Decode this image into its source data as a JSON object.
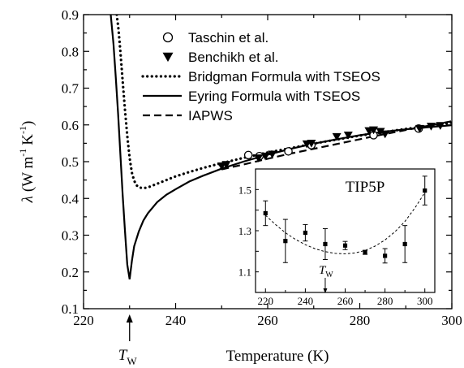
{
  "chart_data": [
    {
      "type": "line",
      "xlabel": "Temperature (K)",
      "ylabel_parts": [
        "λ",
        "(W m",
        "-1",
        "K",
        "-1",
        ")"
      ],
      "xlim": [
        220,
        300
      ],
      "ylim": [
        0.1,
        0.9
      ],
      "x_ticks": [
        220,
        240,
        260,
        280,
        300
      ],
      "y_ticks": [
        0.1,
        0.2,
        0.3,
        0.4,
        0.5,
        0.6,
        0.7,
        0.8,
        0.9
      ],
      "annotation": {
        "label": "T",
        "sub": "W",
        "x": 230
      },
      "legend_placement": "top-right",
      "series": [
        {
          "name": "Taschin et al.",
          "kind": "scatter",
          "marker": "open-circle",
          "x": [
            255.8,
            258.2,
            264.5,
            269.5,
            283,
            292.8
          ],
          "y": [
            0.518,
            0.515,
            0.528,
            0.545,
            0.572,
            0.59
          ]
        },
        {
          "name": "Benchikh et al.",
          "kind": "scatter",
          "marker": "filled-triangle-down",
          "x": [
            250,
            251,
            258,
            259.5,
            261,
            268.5,
            269.5,
            275,
            277.5,
            282,
            283,
            284.5,
            285.5,
            293,
            295.5,
            297.5
          ],
          "y": [
            0.488,
            0.492,
            0.51,
            0.515,
            0.52,
            0.548,
            0.55,
            0.568,
            0.572,
            0.584,
            0.586,
            0.582,
            0.575,
            0.59,
            0.596,
            0.598
          ]
        },
        {
          "name": "Bridgman Formula with TSEOS",
          "kind": "line",
          "style": "dotted",
          "x": [
            227.2,
            227.6,
            228,
            228.5,
            229,
            229.5,
            230,
            230.5,
            231,
            231.5,
            232,
            233,
            234,
            235,
            236,
            238,
            240,
            243,
            246,
            250,
            255,
            260,
            265,
            270,
            275,
            280,
            285,
            290,
            295,
            300
          ],
          "y": [
            0.9,
            0.86,
            0.8,
            0.72,
            0.64,
            0.57,
            0.51,
            0.47,
            0.448,
            0.436,
            0.43,
            0.428,
            0.43,
            0.435,
            0.44,
            0.45,
            0.46,
            0.472,
            0.483,
            0.496,
            0.511,
            0.525,
            0.537,
            0.549,
            0.56,
            0.571,
            0.58,
            0.589,
            0.597,
            0.606
          ]
        },
        {
          "name": "Eyring Formula with TSEOS",
          "kind": "line",
          "style": "solid",
          "x": [
            225.9,
            226.5,
            227,
            227.5,
            228,
            228.5,
            229,
            229.5,
            230,
            230.5,
            231,
            232,
            233,
            234,
            236,
            238,
            240,
            243,
            246,
            250,
            255,
            260,
            265,
            270,
            275,
            280,
            285,
            290,
            295,
            300
          ],
          "y": [
            0.9,
            0.82,
            0.73,
            0.63,
            0.52,
            0.41,
            0.31,
            0.22,
            0.18,
            0.23,
            0.27,
            0.31,
            0.34,
            0.36,
            0.39,
            0.41,
            0.425,
            0.446,
            0.462,
            0.481,
            0.501,
            0.519,
            0.535,
            0.549,
            0.561,
            0.572,
            0.581,
            0.588,
            0.594,
            0.599
          ]
        },
        {
          "name": "IAPWS",
          "kind": "line",
          "style": "dashed",
          "x": [
            250,
            255,
            260,
            265,
            270,
            275,
            280,
            285,
            290,
            295,
            300
          ],
          "y": [
            0.479,
            0.493,
            0.508,
            0.522,
            0.535,
            0.548,
            0.561,
            0.574,
            0.586,
            0.598,
            0.61
          ]
        }
      ]
    },
    {
      "type": "scatter",
      "title": "TIP5P",
      "xlim": [
        215,
        305
      ],
      "ylim": [
        1.0,
        1.6
      ],
      "x_ticks": [
        220,
        240,
        260,
        280,
        300
      ],
      "y_ticks": [
        1.1,
        1.3,
        1.5
      ],
      "annotation": {
        "label": "T",
        "sub": "W",
        "x": 250
      },
      "points": {
        "x": [
          220,
          230,
          240,
          250,
          260,
          270,
          280,
          290,
          300
        ],
        "y": [
          1.385,
          1.25,
          1.29,
          1.235,
          1.228,
          1.195,
          1.178,
          1.235,
          1.495
        ],
        "err": [
          0.06,
          0.105,
          0.04,
          0.075,
          0.02,
          0.01,
          0.035,
          0.09,
          0.07
        ]
      },
      "fit": {
        "x": [
          220,
          225,
          230,
          235,
          240,
          245,
          250,
          255,
          260,
          265,
          270,
          275,
          280,
          285,
          290,
          295,
          300
        ],
        "y": [
          1.375,
          1.33,
          1.29,
          1.258,
          1.232,
          1.212,
          1.198,
          1.19,
          1.188,
          1.192,
          1.204,
          1.225,
          1.255,
          1.295,
          1.345,
          1.41,
          1.485
        ]
      }
    }
  ]
}
